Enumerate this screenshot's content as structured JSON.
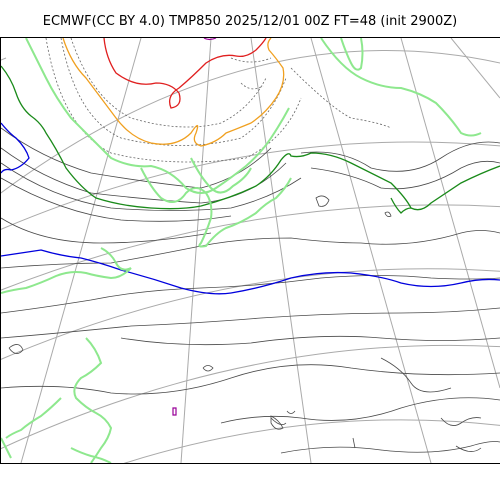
{
  "header": {
    "title": "ECMWF(CC BY 4.0) TMP850 2025/12/01 00Z FT=48 (init 2900Z)"
  },
  "map": {
    "projection": "polar-stereographic",
    "contour_colors": {
      "coastline": "#8ee88e",
      "isotherm_thin": "#4a4a4a",
      "isotherm_dotted": "#666666",
      "isotherm_red": "#e02020",
      "isotherm_orange": "#f0a020",
      "isotherm_green": "#1a8a1a",
      "isotherm_blue": "#0000dd",
      "isotherm_purple": "#990099",
      "graticule": "#aaaaaa"
    }
  }
}
